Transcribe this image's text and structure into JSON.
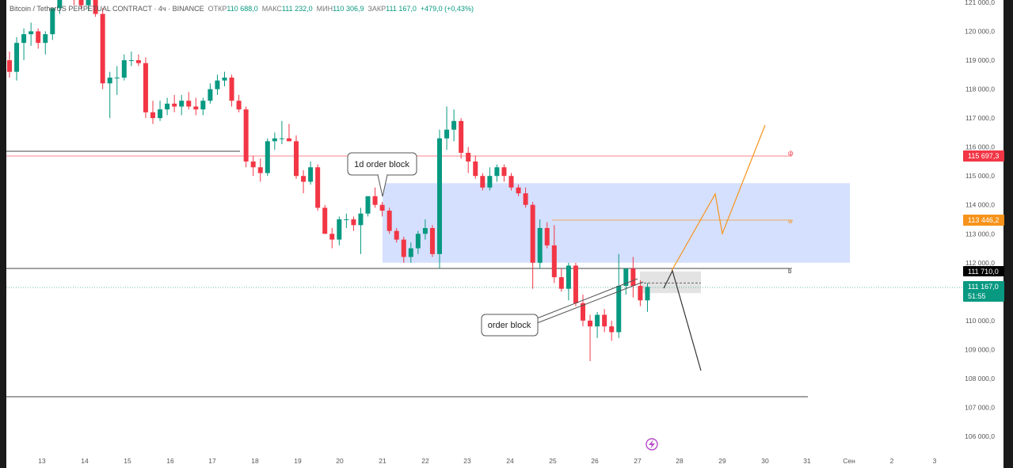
{
  "header": {
    "symbol": "Bitcoin / TetherUS PERPETUAL CONTRACT · 4ч · BINANCE",
    "open_label": "ОТКР",
    "open": "110 688,0",
    "high_label": "МАКС",
    "high": "111 232,0",
    "low_label": "МИН",
    "low": "110 306,9",
    "close_label": "ЗАКР",
    "close": "111 167,0",
    "change": "+479,0 (+0,43%)"
  },
  "chart_data": {
    "type": "candlestick",
    "timeframe": "4h",
    "ylim": [
      105700,
      121000
    ],
    "yticks": [
      106000,
      107000,
      108000,
      109000,
      110000,
      111000,
      112000,
      113000,
      114000,
      115000,
      116000,
      117000,
      118000,
      119000,
      120000,
      121000
    ],
    "ytick_labels": [
      "106 000,0",
      "107 000,0",
      "108 000,0",
      "109 000,0",
      "110 000,0",
      "111 000,0",
      "112 000,0",
      "113 000,0",
      "114 000,0",
      "115 000,0",
      "116 000,0",
      "117 000,0",
      "118 000,0",
      "119 000,0",
      "120 000,0",
      "121 000,0"
    ],
    "xtick_labels": [
      "13",
      "14",
      "15",
      "16",
      "17",
      "18",
      "19",
      "20",
      "21",
      "22",
      "23",
      "24",
      "25",
      "26",
      "27",
      "28",
      "29",
      "30",
      "31",
      "Сен",
      "2",
      "3"
    ],
    "candles": [
      [
        119000,
        119300,
        118400,
        118600
      ],
      [
        118600,
        119800,
        118300,
        119600
      ],
      [
        119600,
        120100,
        119000,
        119900
      ],
      [
        119900,
        120300,
        119500,
        120000
      ],
      [
        120000,
        120100,
        119400,
        119600
      ],
      [
        119600,
        120000,
        119200,
        119900
      ],
      [
        119900,
        120800,
        119700,
        120800
      ],
      [
        120800,
        121500,
        120600,
        121300
      ],
      [
        121300,
        121500,
        121100,
        121200
      ],
      [
        121200,
        121400,
        120900,
        121100
      ],
      [
        121100,
        121300,
        120800,
        120900
      ],
      [
        120900,
        121300,
        120700,
        121100
      ],
      [
        121100,
        121200,
        120500,
        120600
      ],
      [
        120600,
        120800,
        118000,
        118200
      ],
      [
        118200,
        118600,
        117000,
        118400
      ],
      [
        118400,
        118800,
        117800,
        118400
      ],
      [
        118400,
        119200,
        118300,
        119000
      ],
      [
        119000,
        119300,
        118800,
        119000
      ],
      [
        119000,
        119200,
        118800,
        118900
      ],
      [
        118900,
        119100,
        117000,
        117200
      ],
      [
        117200,
        117600,
        116800,
        117000
      ],
      [
        117000,
        117600,
        116900,
        117300
      ],
      [
        117300,
        117700,
        117100,
        117500
      ],
      [
        117500,
        117800,
        117200,
        117400
      ],
      [
        117400,
        117800,
        117100,
        117600
      ],
      [
        117600,
        117900,
        117300,
        117400
      ],
      [
        117400,
        117700,
        117100,
        117300
      ],
      [
        117300,
        117700,
        117100,
        117600
      ],
      [
        117600,
        118200,
        117500,
        118000
      ],
      [
        118000,
        118500,
        117800,
        118300
      ],
      [
        118300,
        118600,
        118100,
        118400
      ],
      [
        118400,
        118500,
        117400,
        117600
      ],
      [
        117600,
        117800,
        117200,
        117300
      ],
      [
        117300,
        117400,
        115300,
        115500
      ],
      [
        115500,
        115700,
        115000,
        115300
      ],
      [
        115300,
        115600,
        114800,
        115100
      ],
      [
        115100,
        116300,
        115000,
        116200
      ],
      [
        116200,
        116500,
        115900,
        116300
      ],
      [
        116300,
        116900,
        116100,
        116300
      ],
      [
        116300,
        116800,
        116200,
        116200
      ],
      [
        116200,
        116400,
        114900,
        115000
      ],
      [
        115000,
        115200,
        114400,
        114800
      ],
      [
        114800,
        115500,
        114700,
        115300
      ],
      [
        115300,
        115400,
        113800,
        113900
      ],
      [
        113900,
        114000,
        113000,
        113000
      ],
      [
        113000,
        113200,
        112500,
        112800
      ],
      [
        112800,
        113600,
        112600,
        113500
      ],
      [
        113500,
        113700,
        113200,
        113500
      ],
      [
        113500,
        113600,
        113100,
        113300
      ],
      [
        113300,
        113900,
        112300,
        113700
      ],
      [
        113700,
        114300,
        113600,
        114300
      ],
      [
        114300,
        114600,
        113900,
        114000
      ],
      [
        114000,
        114100,
        113600,
        113800
      ],
      [
        113800,
        113900,
        113000,
        113100
      ],
      [
        113100,
        113200,
        112700,
        112800
      ],
      [
        112800,
        112900,
        112000,
        112200
      ],
      [
        112200,
        112700,
        112000,
        112500
      ],
      [
        112500,
        113100,
        112300,
        113000
      ],
      [
        113000,
        113500,
        112800,
        113200
      ],
      [
        113200,
        113300,
        112200,
        112300
      ],
      [
        112300,
        116600,
        111800,
        116300
      ],
      [
        116300,
        117400,
        115900,
        116600
      ],
      [
        116600,
        117300,
        116200,
        116900
      ],
      [
        116900,
        117000,
        115600,
        115800
      ],
      [
        115800,
        116000,
        115100,
        115500
      ],
      [
        115500,
        115700,
        114900,
        115000
      ],
      [
        115000,
        115100,
        114500,
        114600
      ],
      [
        114600,
        115300,
        114500,
        115000
      ],
      [
        115000,
        115400,
        114800,
        115300
      ],
      [
        115300,
        115400,
        114800,
        115000
      ],
      [
        115000,
        115100,
        114500,
        114600
      ],
      [
        114600,
        114700,
        114300,
        114400
      ],
      [
        114400,
        114600,
        113900,
        114000
      ],
      [
        114000,
        114100,
        111100,
        112000
      ],
      [
        112000,
        113500,
        111800,
        113200
      ],
      [
        113200,
        113400,
        112500,
        112600
      ],
      [
        112600,
        113300,
        111300,
        111500
      ],
      [
        111500,
        111800,
        111000,
        111100
      ],
      [
        111100,
        112000,
        110700,
        111900
      ],
      [
        111900,
        112000,
        110500,
        110600
      ],
      [
        110600,
        110900,
        109800,
        110000
      ],
      [
        110000,
        110200,
        108600,
        109800
      ],
      [
        109800,
        110300,
        109400,
        110200
      ],
      [
        110200,
        110400,
        109600,
        109800
      ],
      [
        109800,
        110000,
        109300,
        109600
      ],
      [
        109600,
        112300,
        109400,
        111200
      ],
      [
        111200,
        111700,
        110900,
        111800
      ],
      [
        111800,
        112200,
        110800,
        111200
      ],
      [
        111200,
        111400,
        110500,
        110700
      ],
      [
        110700,
        111300,
        110300,
        111167
      ]
    ],
    "annotations": [
      {
        "type": "callout",
        "text": "1d order block"
      },
      {
        "type": "callout",
        "text": "order block"
      },
      {
        "type": "horizontal_line",
        "label": "ф",
        "price": 115700,
        "color": "#f23645"
      },
      {
        "type": "horizontal_line",
        "label": "w",
        "price": 113446,
        "color": "#f7931a"
      },
      {
        "type": "horizontal_line",
        "label": "b",
        "price": 111710,
        "color": "#000000"
      },
      {
        "type": "zone",
        "price_from": 112000,
        "price_to": 114750,
        "color": "#c7d6fd"
      },
      {
        "type": "zone",
        "price_from": 110950,
        "price_to": 111700,
        "color": "#dcdcdc"
      }
    ],
    "price_labels": [
      {
        "text": "115 697,3",
        "color": "#f23645"
      },
      {
        "text": "113 446,2",
        "color": "#f7931a"
      },
      {
        "text": "111 710,0",
        "color": "#000000"
      },
      {
        "text": "111 167,0",
        "sub": "51:55",
        "color": "#089981"
      }
    ]
  },
  "watermark": {
    "icon": "lightning-icon"
  }
}
